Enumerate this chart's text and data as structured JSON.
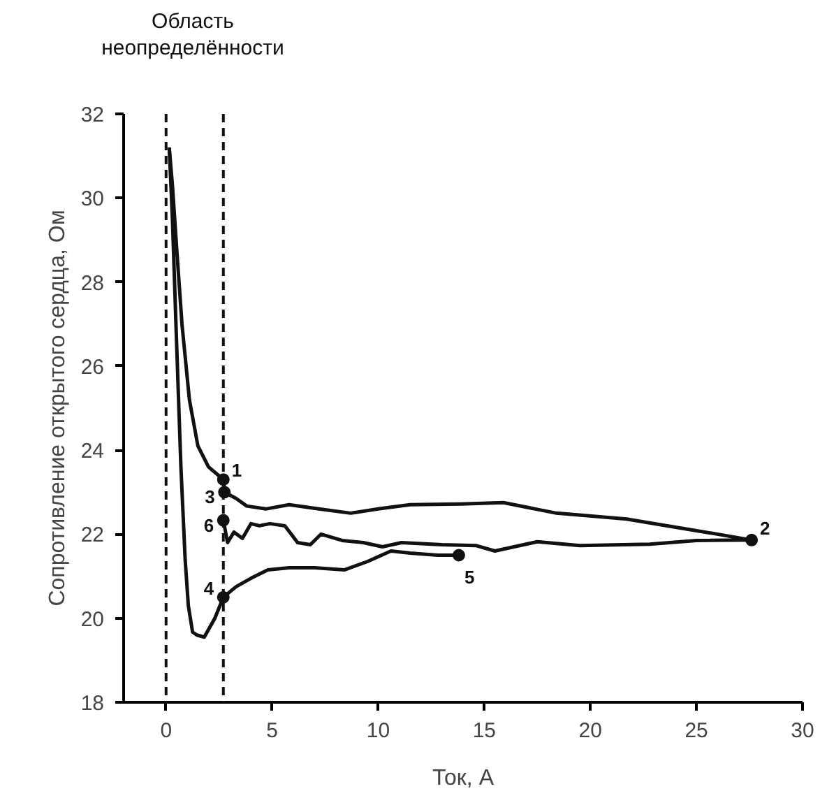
{
  "chart_data": {
    "type": "line",
    "xlabel": "Ток, А",
    "ylabel": "Сопротивление открытого сердца, Ом",
    "xlim": [
      -2,
      30
    ],
    "ylim": [
      18,
      32
    ],
    "xticks": [
      0,
      5,
      10,
      15,
      20,
      25,
      30
    ],
    "yticks": [
      18,
      20,
      22,
      24,
      26,
      28,
      30,
      32
    ],
    "grid": false,
    "line_style": "solid",
    "marker": "none",
    "series": [
      {
        "color": "#111111",
        "x": [
          0.15,
          0.3,
          0.5,
          0.75,
          1.1,
          1.5,
          2.0,
          2.7,
          2.75,
          3.3,
          3.8,
          4.7,
          5.8,
          7.2,
          8.7,
          10.0,
          11.5,
          13.9,
          15.9,
          18.4,
          21.7,
          25.4,
          27.6,
          25.0,
          22.8,
          19.5,
          17.5,
          15.5,
          14.6,
          13.0,
          11.1,
          10.2,
          9.3,
          8.3,
          7.3,
          6.8,
          6.2,
          5.6,
          4.9,
          4.4,
          4.0,
          3.6,
          3.2,
          2.9,
          2.7
        ],
        "values": [
          31.2,
          30.3,
          28.8,
          27.0,
          25.2,
          24.1,
          23.6,
          23.3,
          23.0,
          22.85,
          22.67,
          22.6,
          22.7,
          22.6,
          22.5,
          22.6,
          22.7,
          22.72,
          22.75,
          22.5,
          22.36,
          22.05,
          21.86,
          21.85,
          21.76,
          21.73,
          21.82,
          21.6,
          21.73,
          21.75,
          21.8,
          21.7,
          21.8,
          21.85,
          22.0,
          21.75,
          21.8,
          22.2,
          22.25,
          22.2,
          22.25,
          21.9,
          22.05,
          21.8,
          22.33
        ]
      },
      {
        "color": "#111111",
        "x": [
          13.8,
          12.8,
          11.5,
          10.6,
          9.5,
          8.4,
          7.0,
          5.8,
          4.8,
          4.0,
          3.3,
          2.7,
          2.3,
          1.8,
          1.45,
          1.25,
          1.05,
          0.9,
          0.7,
          0.5,
          0.3,
          0.15
        ],
        "values": [
          21.5,
          21.5,
          21.55,
          21.6,
          21.35,
          21.15,
          21.2,
          21.2,
          21.15,
          20.95,
          20.75,
          20.5,
          20.0,
          19.55,
          19.6,
          19.67,
          20.3,
          21.4,
          23.6,
          26.5,
          29.5,
          31.2
        ]
      },
      {
        "type": "scatter",
        "marker": "circle",
        "color": "#111111",
        "x": [
          2.7,
          27.6,
          2.75,
          2.7,
          13.8,
          2.7
        ],
        "values": [
          23.3,
          21.86,
          23.0,
          20.5,
          21.5,
          22.33
        ]
      }
    ],
    "ref_lines": [
      {
        "axis": "x",
        "value": 0,
        "line_style": "dashed",
        "color": "#111111"
      },
      {
        "axis": "x",
        "value": 2.7,
        "line_style": "dashed",
        "color": "#111111"
      }
    ],
    "annotations": [
      {
        "text": "1",
        "x": 2.7,
        "y": 23.3
      },
      {
        "text": "2",
        "x": 27.6,
        "y": 21.86
      },
      {
        "text": "3",
        "x": 2.75,
        "y": 23.0
      },
      {
        "text": "4",
        "x": 2.7,
        "y": 20.5
      },
      {
        "text": "5",
        "x": 13.8,
        "y": 21.5
      },
      {
        "text": "6",
        "x": 2.7,
        "y": 22.33
      },
      "Область\nнеопределённости"
    ]
  }
}
